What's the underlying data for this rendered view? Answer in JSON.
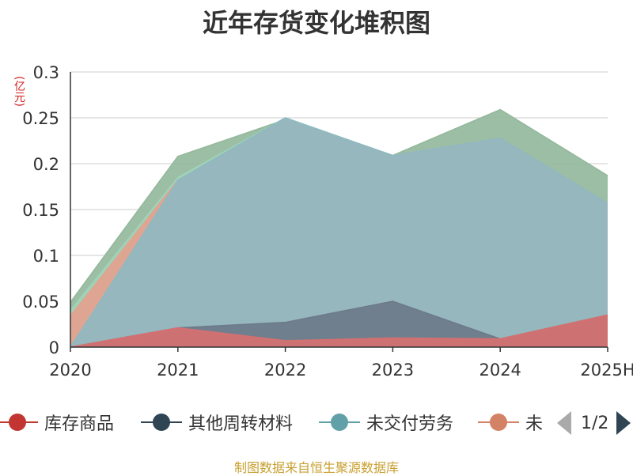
{
  "chart_data": {
    "type": "area",
    "stacked": false,
    "title": "近年存货变化堆积图",
    "y_unit_label": "(亿元)",
    "categories": [
      "2020",
      "2021",
      "2022",
      "2023",
      "2024",
      "2025H"
    ],
    "y_ticks": [
      "0",
      "0.05",
      "0.1",
      "0.15",
      "0.2",
      "0.25",
      "0.3"
    ],
    "ylim": [
      0,
      0.3
    ],
    "grid": true,
    "legend_placement": "bottom",
    "series": [
      {
        "name": "未",
        "color": "#94b89c",
        "values": [
          0.049,
          0.208,
          0.248,
          0.209,
          0.259,
          0.187
        ]
      },
      {
        "name": "未",
        "color": "#9fd3b8",
        "values": [
          0.04,
          0.185,
          0.25,
          0.209,
          0.228,
          0.157
        ]
      },
      {
        "name": "未",
        "color": "#e3a28e",
        "values": [
          0.034,
          0.182,
          0.248,
          0.209,
          0.228,
          0.157
        ]
      },
      {
        "name": "未交付劳务",
        "color": "#8fb9c1",
        "values": [
          0.0,
          0.182,
          0.25,
          0.209,
          0.228,
          0.157
        ]
      },
      {
        "name": "其他周转材料",
        "color": "#6c7a8a",
        "values": [
          0.0,
          0.021,
          0.027,
          0.05,
          0.009,
          0.035
        ]
      },
      {
        "name": "库存商品",
        "color": "#d67070",
        "values": [
          0.0,
          0.021,
          0.007,
          0.01,
          0.009,
          0.035
        ]
      }
    ]
  },
  "legend": {
    "items": [
      {
        "label": "库存商品",
        "color": "#c23531"
      },
      {
        "label": "其他周转材料",
        "color": "#2f4554"
      },
      {
        "label": "未交付劳务",
        "color": "#61a0a8"
      },
      {
        "label": "未",
        "color": "#d48265"
      }
    ],
    "page_indicator": "1/2"
  },
  "source_note": "制图数据来自恒生聚源数据库"
}
